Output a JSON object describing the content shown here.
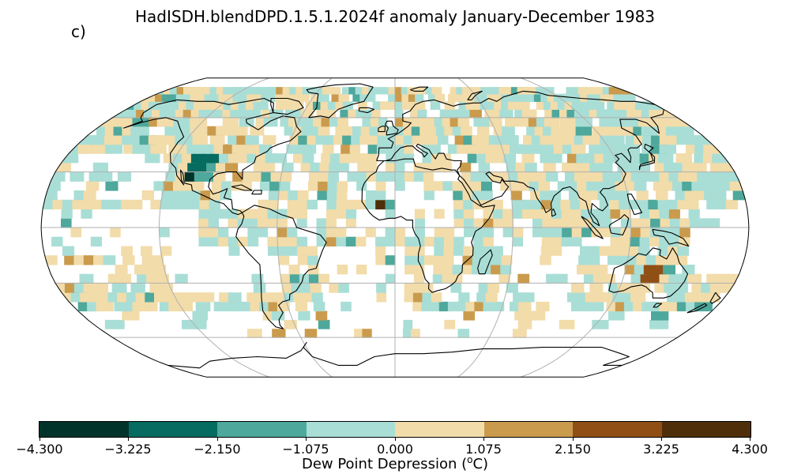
{
  "title": "HadISDH.blendDPD.1.5.1.2024f anomaly January-December 1983",
  "panel_label": "c)",
  "map": {
    "projection": "Robinson",
    "outline_color": "#000000",
    "graticule_color": "#b0b0b0",
    "coastline_color": "#000000"
  },
  "colorbar": {
    "label": "Dew Point Depression (",
    "label_unit_sup": "o",
    "label_tail": "C)",
    "colors": [
      "#01332b",
      "#066b60",
      "#4ea89c",
      "#a9ded6",
      "#f2dcaa",
      "#ca9b4d",
      "#904f14",
      "#4e2f09"
    ],
    "ticks": [
      "−4.300",
      "−3.225",
      "−2.150",
      "−1.075",
      "0.000",
      "1.075",
      "2.150",
      "3.225",
      "4.300"
    ]
  }
}
